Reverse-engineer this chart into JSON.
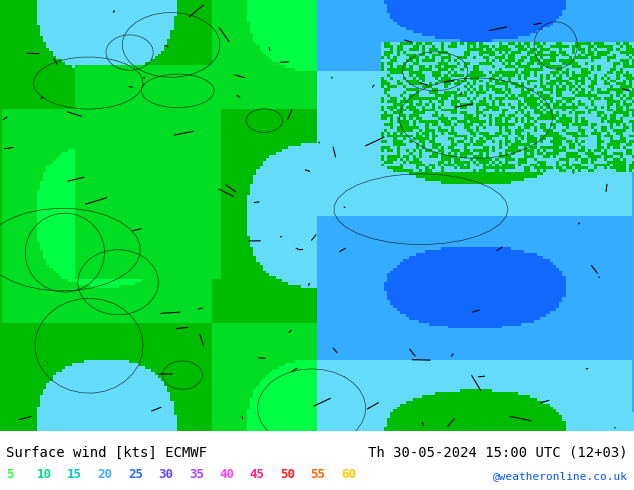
{
  "title_left": "Surface wind [kts] ECMWF",
  "title_right": "Th 30-05-2024 15:00 UTC (12+03)",
  "credit": "@weatheronline.co.uk",
  "legend_values": [
    5,
    10,
    15,
    20,
    25,
    30,
    35,
    40,
    45,
    50,
    55,
    60
  ],
  "legend_colors": [
    "#00ff00",
    "#00dd00",
    "#00cc44",
    "#00bbff",
    "#0088ff",
    "#0055ff",
    "#aaaaff",
    "#ff00ff",
    "#ff44aa",
    "#ff0044",
    "#ff6600",
    "#ffcc00"
  ],
  "legend_colors2": [
    "#33ff33",
    "#00ee88",
    "#00ccaa",
    "#00aaff",
    "#0077ff",
    "#5555ff",
    "#cc88ff",
    "#ff44ff",
    "#ff2266",
    "#ff1133",
    "#ff8800",
    "#ffee00"
  ],
  "background_map_color": "#00cc44",
  "fig_width": 6.34,
  "fig_height": 4.9,
  "bottom_bar_color": "#ffffff",
  "title_fontsize": 10,
  "legend_fontsize": 9,
  "credit_color": "#0055ff"
}
